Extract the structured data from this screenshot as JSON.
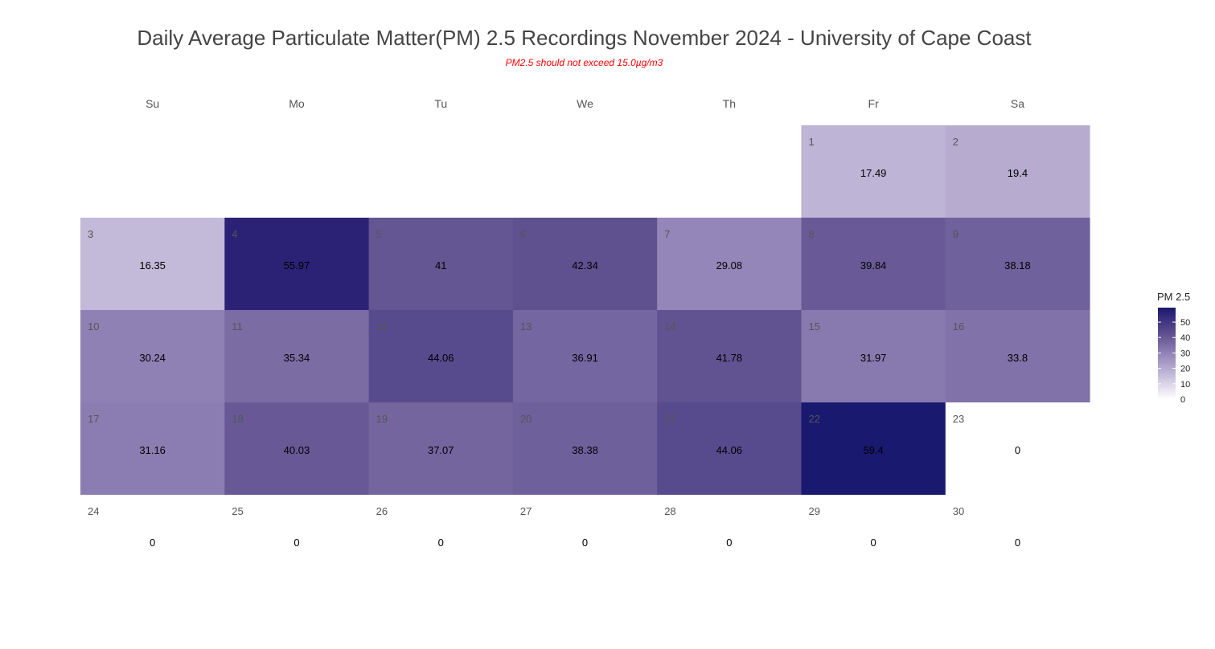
{
  "chart_data": {
    "type": "heatmap",
    "title": "Daily Average Particulate Matter(PM) 2.5 Recordings November 2024 -  University of Cape Coast",
    "subtitle": "PM2.5 should not exceed 15.0µg/m3",
    "weekdays": [
      "Su",
      "Mo",
      "Tu",
      "We",
      "Th",
      "Fr",
      "Sa"
    ],
    "first_weekday_index": 5,
    "days": [
      1,
      2,
      3,
      4,
      5,
      6,
      7,
      8,
      9,
      10,
      11,
      12,
      13,
      14,
      15,
      16,
      17,
      18,
      19,
      20,
      21,
      22,
      23,
      24,
      25,
      26,
      27,
      28,
      29,
      30
    ],
    "values": [
      17.49,
      19.4,
      16.35,
      55.97,
      41,
      42.34,
      29.08,
      39.84,
      38.18,
      30.24,
      35.34,
      44.06,
      36.91,
      41.78,
      31.97,
      33.8,
      31.16,
      40.03,
      37.07,
      38.38,
      44.06,
      59.4,
      0,
      0,
      0,
      0,
      0,
      0,
      0,
      0
    ],
    "legend": {
      "title": "PM 2.5",
      "ticks": [
        0,
        10,
        20,
        30,
        40,
        50
      ],
      "range": [
        0,
        59.4
      ],
      "low_color": "#ffffff",
      "high_color": "#191970"
    }
  }
}
